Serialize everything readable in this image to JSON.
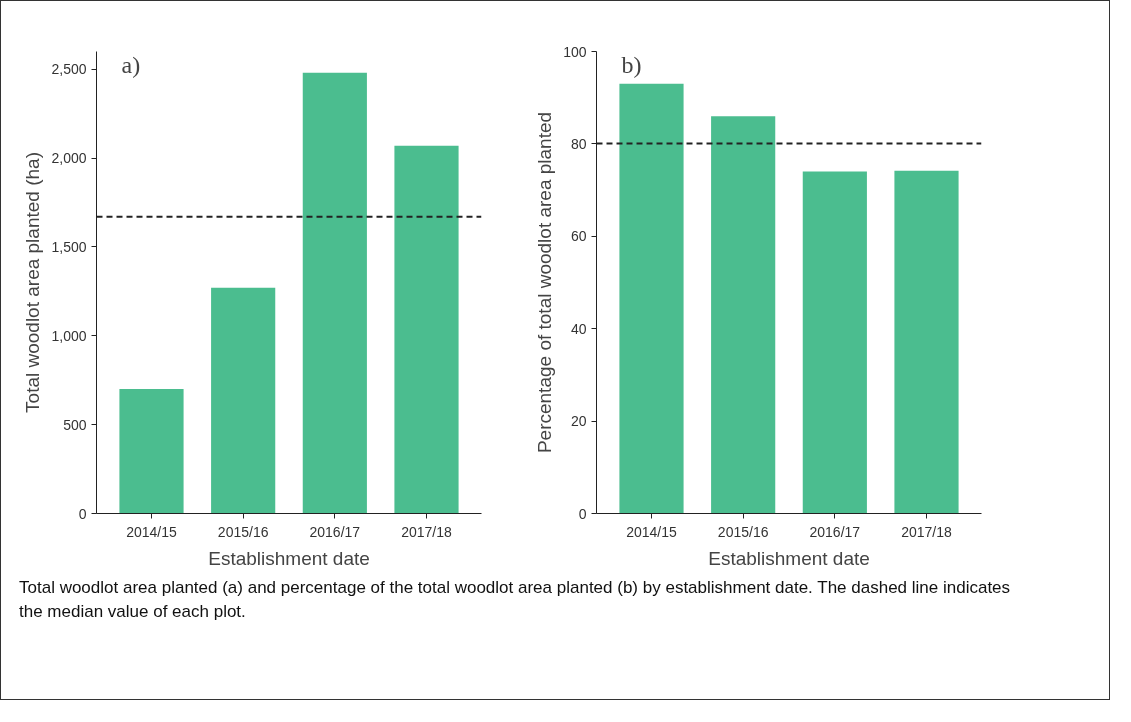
{
  "chart_data": [
    {
      "type": "bar",
      "title": "a)",
      "xlabel": "Establishment date",
      "ylabel": "Total woodlot area planted (ha)",
      "categories": [
        "2014/15",
        "2015/16",
        "2016/17",
        "2017/18"
      ],
      "values": [
        700,
        1270,
        2480,
        2070
      ],
      "color": "#4bbd8f",
      "ylim": [
        0,
        2600
      ],
      "yticks": [
        0,
        {
          "value": 500,
          "label": "500"
        },
        {
          "value": 1000,
          "label": "1,000"
        },
        {
          "value": 1500,
          "label": "1,500"
        },
        {
          "value": 2000,
          "label": "2,000"
        },
        {
          "value": 2500,
          "label": "2,500"
        }
      ],
      "ref_lines": [
        {
          "axis": "y",
          "value": 1670,
          "color": "#222222",
          "line_style": "dashed"
        }
      ],
      "grid": false
    },
    {
      "type": "bar",
      "title": "b)",
      "xlabel": "Establishment date",
      "ylabel": "Percentage of total woodlot area planted",
      "categories": [
        "2014/15",
        "2015/16",
        "2016/17",
        "2017/18"
      ],
      "values": [
        93,
        86,
        74,
        74.2
      ],
      "color": "#4bbd8f",
      "ylim": [
        0,
        100
      ],
      "yticks": [
        0,
        20,
        40,
        60,
        80,
        100
      ],
      "ref_lines": [
        {
          "axis": "y",
          "value": 80.1,
          "color": "#222222",
          "line_style": "dashed"
        }
      ],
      "grid": false,
      "annotations": [
        "Total woodlot area planted (a) and percentage of the total woodlot area planted (b) by establishment date. The dashed line indicates the median value of each plot."
      ]
    }
  ]
}
